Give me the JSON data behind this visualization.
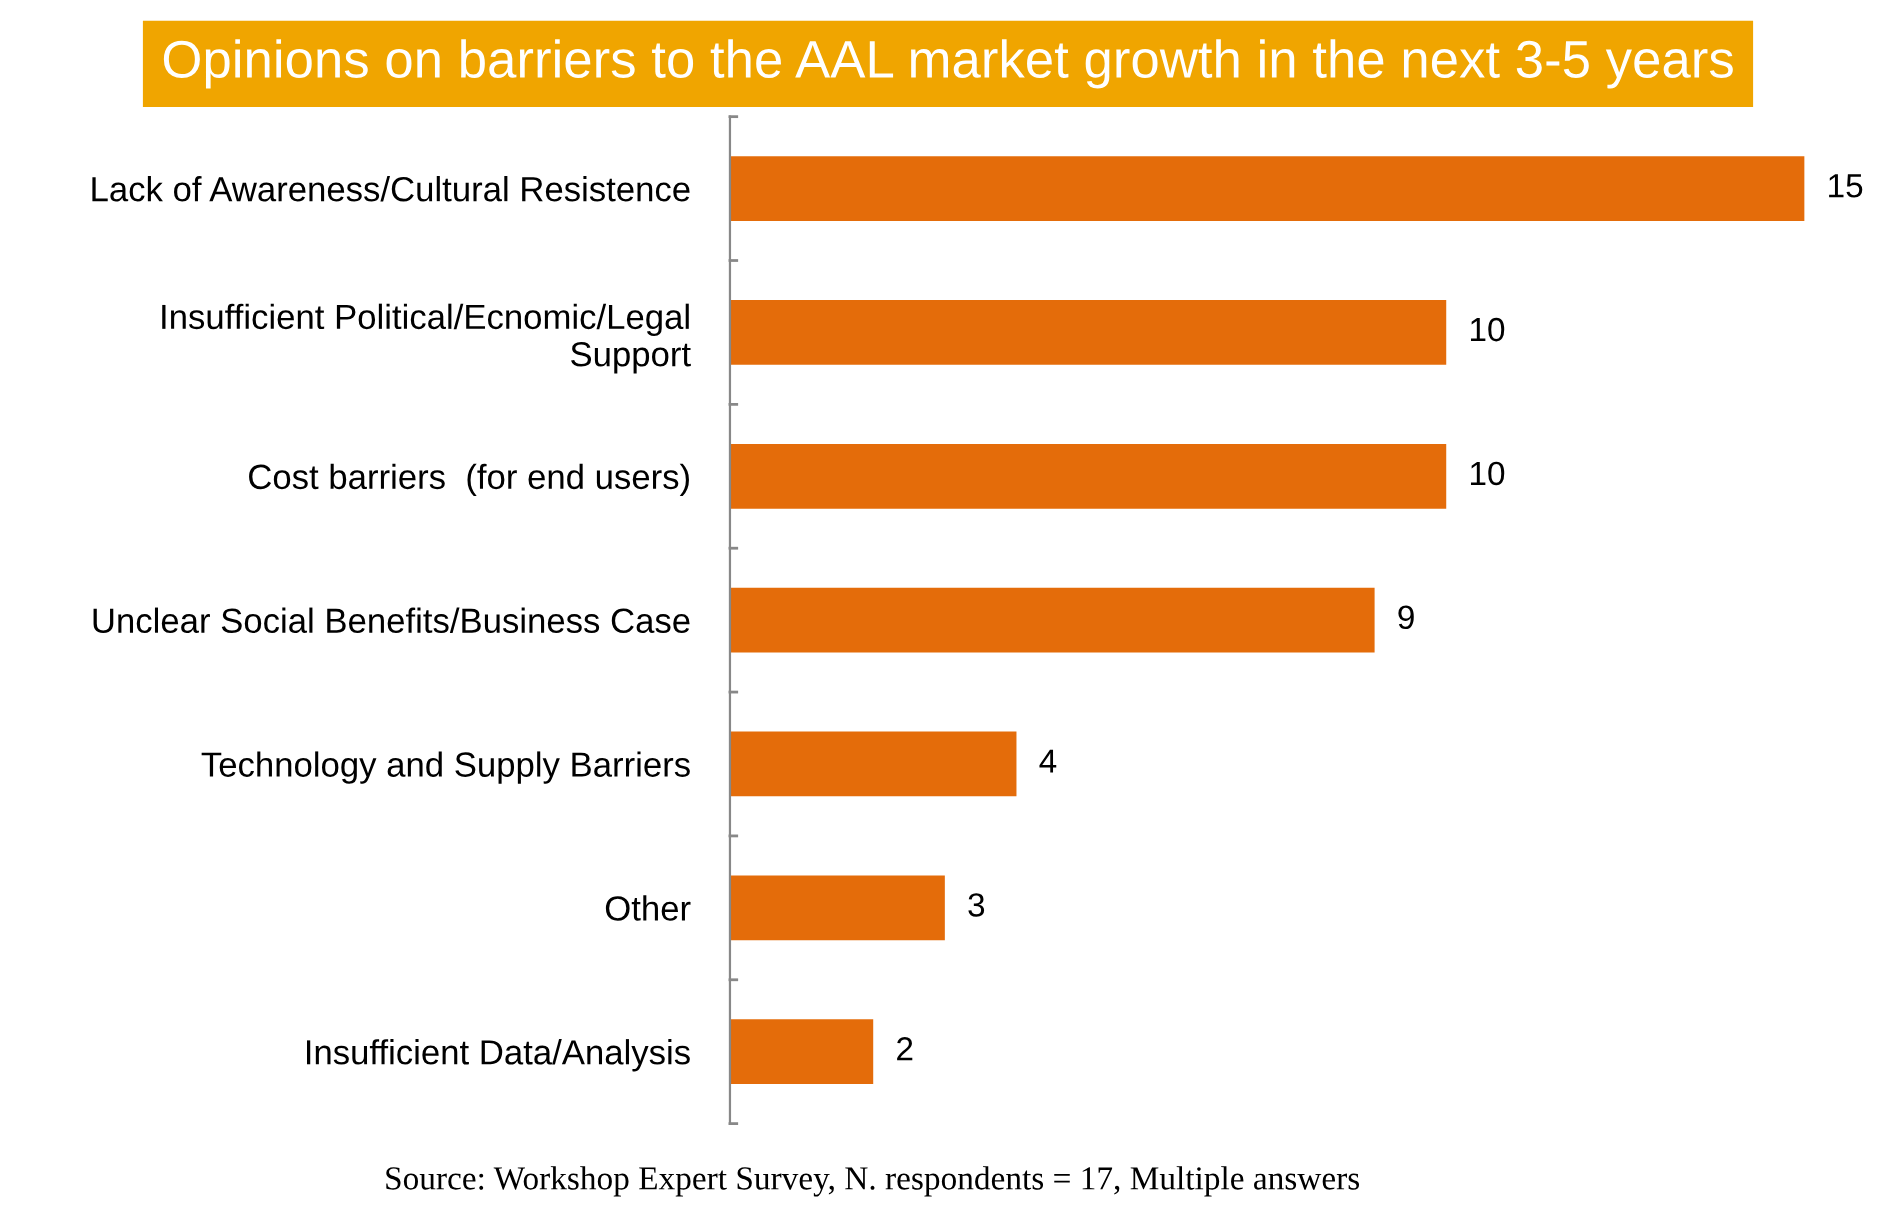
{
  "chart_data": {
    "type": "bar",
    "orientation": "horizontal",
    "title": "Opinions on barriers to the AAL market growth in the next 3-5 years",
    "categories": [
      "Lack of Awareness/Cultural Resistence",
      "Insufficient Political/Ecnomic/Legal\nSupport",
      "Cost barriers  (for end users)",
      "Unclear Social Benefits/Business Case",
      "Technology and Supply Barriers",
      "Other",
      "Insufficient Data/Analysis"
    ],
    "values": [
      15,
      10,
      10,
      9,
      4,
      3,
      2
    ],
    "color": "#e46c0a",
    "data_labels": true,
    "grid": false,
    "legend": false,
    "annotations": [
      "Source: Workshop Expert Survey, N. respondents = 17, Multiple answers"
    ]
  }
}
